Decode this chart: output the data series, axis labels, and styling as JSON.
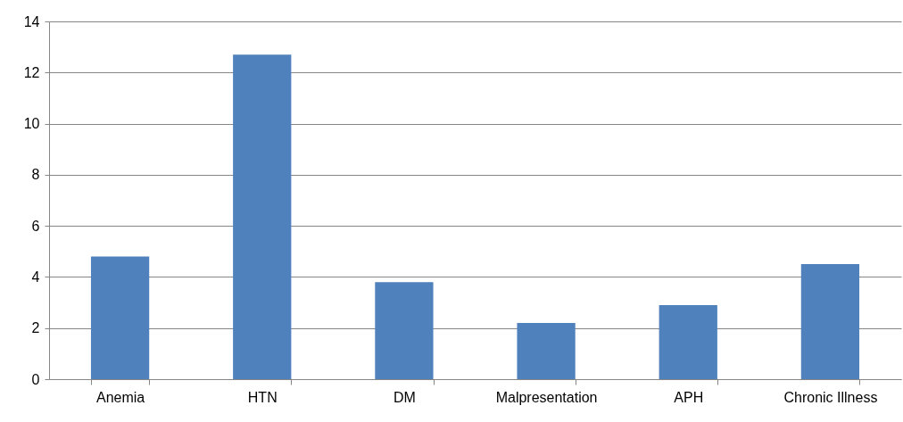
{
  "chart_data": {
    "type": "bar",
    "categories": [
      "Anemia",
      "HTN",
      "DM",
      "Malpresentation",
      "APH",
      "Chronic Illness"
    ],
    "values": [
      4.8,
      12.7,
      3.8,
      2.2,
      2.9,
      4.5
    ],
    "color": "#4f81bd",
    "ylim": [
      0,
      14
    ],
    "yticks": [
      0,
      2,
      4,
      6,
      8,
      10,
      12,
      14
    ],
    "grid": "y"
  }
}
